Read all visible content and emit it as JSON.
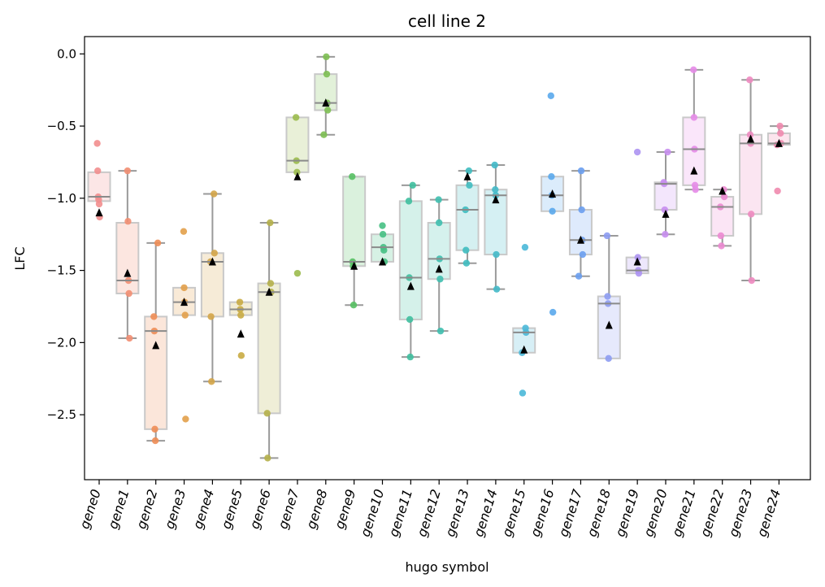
{
  "chart_data": {
    "type": "box",
    "title": "cell line 2",
    "xlabel": "hugo symbol",
    "ylabel": "LFC",
    "ylim": [
      -2.95,
      0.12
    ],
    "yticks": [
      0.0,
      -0.5,
      -1.0,
      -1.5,
      -2.0,
      -2.5
    ],
    "ytick_labels": [
      "0.0",
      "−0.5",
      "−1.0",
      "−1.5",
      "−2.0",
      "−2.5"
    ],
    "categories": [
      "gene0",
      "gene1",
      "gene2",
      "gene3",
      "gene4",
      "gene5",
      "gene6",
      "gene7",
      "gene8",
      "gene9",
      "gene10",
      "gene11",
      "gene12",
      "gene13",
      "gene14",
      "gene15",
      "gene16",
      "gene17",
      "gene18",
      "gene19",
      "gene20",
      "gene21",
      "gene22",
      "gene23",
      "gene24"
    ],
    "colors": [
      "#f28e8e",
      "#f28e72",
      "#ee8d55",
      "#e2a04a",
      "#d4a548",
      "#c9ab42",
      "#b5b04a",
      "#9bbb4c",
      "#7dbf52",
      "#57c063",
      "#46c083",
      "#3fbf9f",
      "#3fbfaf",
      "#3fbcc0",
      "#42b9c8",
      "#4ab8d8",
      "#5aa8ec",
      "#6a9ef0",
      "#8d9cf2",
      "#ad93f2",
      "#c88ef0",
      "#e68be8",
      "#ec8ad2",
      "#ee8ac0",
      "#f08aae"
    ],
    "series": [
      {
        "q1": -1.02,
        "median": -0.99,
        "q3": -0.82,
        "wlo": null,
        "whi": null,
        "mean": -1.1,
        "points": [
          -0.62,
          -0.81,
          -0.99,
          -1.01,
          -1.04,
          -1.13
        ]
      },
      {
        "q1": -1.66,
        "median": -1.57,
        "q3": -1.17,
        "wlo": -1.97,
        "whi": -0.81,
        "mean": -1.52,
        "points": [
          -0.81,
          -1.16,
          -1.57,
          -1.66,
          -1.97
        ]
      },
      {
        "q1": -2.6,
        "median": -1.92,
        "q3": -1.82,
        "wlo": -2.68,
        "whi": -1.31,
        "mean": -2.02,
        "points": [
          -1.31,
          -1.82,
          -1.92,
          -2.6,
          -2.68
        ]
      },
      {
        "q1": -1.81,
        "median": -1.72,
        "q3": -1.62,
        "wlo": null,
        "whi": null,
        "mean": -1.72,
        "points": [
          -1.23,
          -1.62,
          -1.72,
          -1.81,
          -2.53
        ]
      },
      {
        "q1": -1.82,
        "median": -1.44,
        "q3": -1.38,
        "wlo": -2.27,
        "whi": -0.97,
        "mean": -1.44,
        "points": [
          -0.97,
          -1.38,
          -1.44,
          -1.82,
          -2.27
        ]
      },
      {
        "q1": -1.81,
        "median": -1.77,
        "q3": -1.72,
        "wlo": null,
        "whi": null,
        "mean": -1.94,
        "points": [
          -1.72,
          -1.77,
          -1.81,
          -2.09
        ]
      },
      {
        "q1": -2.49,
        "median": -1.65,
        "q3": -1.59,
        "wlo": -2.8,
        "whi": -1.17,
        "mean": -1.65,
        "points": [
          -1.17,
          -1.59,
          -1.65,
          -2.49,
          -2.8
        ]
      },
      {
        "q1": -0.82,
        "median": -0.74,
        "q3": -0.44,
        "wlo": null,
        "whi": null,
        "mean": -0.85,
        "points": [
          -0.44,
          -0.74,
          -0.82,
          -1.52
        ]
      },
      {
        "q1": -0.39,
        "median": -0.34,
        "q3": -0.14,
        "wlo": -0.56,
        "whi": -0.02,
        "mean": -0.34,
        "points": [
          -0.02,
          -0.14,
          -0.34,
          -0.39,
          -0.56
        ]
      },
      {
        "q1": -1.47,
        "median": -1.44,
        "q3": -0.85,
        "wlo": -1.74,
        "whi": -0.85,
        "mean": -1.47,
        "points": [
          -0.85,
          -1.44,
          -1.47,
          -1.74
        ]
      },
      {
        "q1": -1.44,
        "median": -1.34,
        "q3": -1.25,
        "wlo": null,
        "whi": null,
        "mean": -1.44,
        "points": [
          -1.19,
          -1.25,
          -1.34,
          -1.36,
          -1.44
        ]
      },
      {
        "q1": -1.84,
        "median": -1.55,
        "q3": -1.02,
        "wlo": -2.1,
        "whi": -0.91,
        "mean": -1.61,
        "points": [
          -0.91,
          -1.02,
          -1.55,
          -1.84,
          -2.1
        ]
      },
      {
        "q1": -1.56,
        "median": -1.42,
        "q3": -1.17,
        "wlo": -1.92,
        "whi": -1.01,
        "mean": -1.49,
        "points": [
          -1.01,
          -1.17,
          -1.42,
          -1.56,
          -1.92
        ]
      },
      {
        "q1": -1.36,
        "median": -1.08,
        "q3": -0.91,
        "wlo": -1.45,
        "whi": -0.81,
        "mean": -0.85,
        "points": [
          -0.81,
          -0.91,
          -1.08,
          -1.36,
          -1.45
        ]
      },
      {
        "q1": -1.39,
        "median": -0.98,
        "q3": -0.94,
        "wlo": -1.63,
        "whi": -0.77,
        "mean": -1.01,
        "points": [
          -0.77,
          -0.94,
          -0.98,
          -1.39,
          -1.63
        ]
      },
      {
        "q1": -2.07,
        "median": -1.93,
        "q3": -1.9,
        "wlo": null,
        "whi": null,
        "mean": -2.05,
        "points": [
          -1.34,
          -1.9,
          -1.93,
          -2.07,
          -2.35
        ]
      },
      {
        "q1": -1.09,
        "median": -0.98,
        "q3": -0.85,
        "wlo": null,
        "whi": null,
        "mean": -0.97,
        "points": [
          -0.29,
          -0.85,
          -0.98,
          -1.09,
          -1.79
        ]
      },
      {
        "q1": -1.39,
        "median": -1.29,
        "q3": -1.08,
        "wlo": -1.54,
        "whi": -0.81,
        "mean": -1.29,
        "points": [
          -0.81,
          -1.08,
          -1.29,
          -1.39,
          -1.54
        ]
      },
      {
        "q1": -2.11,
        "median": -1.73,
        "q3": -1.68,
        "wlo": null,
        "whi": -1.26,
        "mean": -1.88,
        "points": [
          -1.26,
          -1.68,
          -1.73,
          -2.11
        ]
      },
      {
        "q1": -1.52,
        "median": -1.5,
        "q3": -1.41,
        "wlo": null,
        "whi": null,
        "mean": -1.44,
        "points": [
          -0.68,
          -1.41,
          -1.5,
          -1.52
        ]
      },
      {
        "q1": -1.08,
        "median": -0.9,
        "q3": -0.89,
        "wlo": -1.25,
        "whi": -0.68,
        "mean": -1.11,
        "points": [
          -0.68,
          -0.89,
          -0.9,
          -1.08,
          -1.25
        ]
      },
      {
        "q1": -0.91,
        "median": -0.66,
        "q3": -0.44,
        "wlo": -0.94,
        "whi": -0.11,
        "mean": -0.81,
        "points": [
          -0.11,
          -0.44,
          -0.66,
          -0.91,
          -0.94
        ]
      },
      {
        "q1": -1.26,
        "median": -1.06,
        "q3": -0.99,
        "wlo": -1.33,
        "whi": -0.94,
        "mean": -0.95,
        "points": [
          -0.94,
          -0.99,
          -1.06,
          -1.26,
          -1.33
        ]
      },
      {
        "q1": -1.11,
        "median": -0.62,
        "q3": -0.56,
        "wlo": -1.57,
        "whi": -0.18,
        "mean": -0.59,
        "points": [
          -0.18,
          -0.56,
          -0.62,
          -1.11,
          -1.57
        ]
      },
      {
        "q1": -0.63,
        "median": -0.62,
        "q3": -0.55,
        "wlo": null,
        "whi": -0.5,
        "mean": -0.62,
        "points": [
          -0.5,
          -0.55,
          -0.62,
          -0.63,
          -0.95
        ]
      }
    ]
  }
}
